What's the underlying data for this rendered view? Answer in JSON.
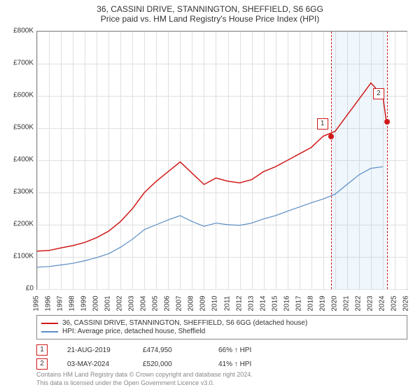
{
  "title": "36, CASSINI DRIVE, STANNINGTON, SHEFFIELD, S6 6GG",
  "subtitle": "Price paid vs. HM Land Registry's House Price Index (HPI)",
  "chart": {
    "type": "line",
    "background_color": "#ffffff",
    "grid_color": "#e0e0e0",
    "border_color": "#888888",
    "xlim": [
      1995,
      2026
    ],
    "ylim": [
      0,
      800000
    ],
    "ytick_step": 100000,
    "ytick_labels": [
      "£0",
      "£100K",
      "£200K",
      "£300K",
      "£400K",
      "£500K",
      "£600K",
      "£700K",
      "£800K"
    ],
    "xtick_step": 1,
    "xtick_labels": [
      "1995",
      "1996",
      "1997",
      "1998",
      "1999",
      "2000",
      "2001",
      "2002",
      "2003",
      "2004",
      "2005",
      "2006",
      "2007",
      "2008",
      "2009",
      "2010",
      "2011",
      "2012",
      "2013",
      "2014",
      "2015",
      "2016",
      "2017",
      "2018",
      "2019",
      "2020",
      "2021",
      "2022",
      "2023",
      "2024",
      "2025",
      "2026"
    ],
    "label_fontsize": 10,
    "title_fontsize": 12,
    "series": [
      {
        "name": "36, CASSINI DRIVE, STANNINGTON, SHEFFIELD, S6 6GG (detached house)",
        "color": "#d11a1a",
        "line_width": 1.5,
        "data": [
          [
            1995,
            118000
          ],
          [
            1996,
            120000
          ],
          [
            1997,
            128000
          ],
          [
            1998,
            135000
          ],
          [
            1999,
            145000
          ],
          [
            2000,
            160000
          ],
          [
            2001,
            180000
          ],
          [
            2002,
            210000
          ],
          [
            2003,
            250000
          ],
          [
            2004,
            300000
          ],
          [
            2005,
            335000
          ],
          [
            2006,
            365000
          ],
          [
            2007,
            395000
          ],
          [
            2008,
            360000
          ],
          [
            2009,
            325000
          ],
          [
            2010,
            345000
          ],
          [
            2011,
            335000
          ],
          [
            2012,
            330000
          ],
          [
            2013,
            340000
          ],
          [
            2014,
            365000
          ],
          [
            2015,
            380000
          ],
          [
            2016,
            400000
          ],
          [
            2017,
            420000
          ],
          [
            2018,
            440000
          ],
          [
            2019,
            475000
          ],
          [
            2020,
            490000
          ],
          [
            2021,
            540000
          ],
          [
            2022,
            590000
          ],
          [
            2023,
            640000
          ],
          [
            2024,
            600000
          ],
          [
            2024.3,
            520000
          ]
        ]
      },
      {
        "name": "HPI: Average price, detached house, Sheffield",
        "color": "#5a8cc4",
        "line_width": 1.2,
        "data": [
          [
            1995,
            68000
          ],
          [
            1996,
            70000
          ],
          [
            1997,
            75000
          ],
          [
            1998,
            80000
          ],
          [
            1999,
            88000
          ],
          [
            2000,
            98000
          ],
          [
            2001,
            110000
          ],
          [
            2002,
            130000
          ],
          [
            2003,
            155000
          ],
          [
            2004,
            185000
          ],
          [
            2005,
            200000
          ],
          [
            2006,
            215000
          ],
          [
            2007,
            228000
          ],
          [
            2008,
            210000
          ],
          [
            2009,
            195000
          ],
          [
            2010,
            205000
          ],
          [
            2011,
            200000
          ],
          [
            2012,
            198000
          ],
          [
            2013,
            205000
          ],
          [
            2014,
            218000
          ],
          [
            2015,
            228000
          ],
          [
            2016,
            242000
          ],
          [
            2017,
            255000
          ],
          [
            2018,
            268000
          ],
          [
            2019,
            280000
          ],
          [
            2020,
            295000
          ],
          [
            2021,
            325000
          ],
          [
            2022,
            355000
          ],
          [
            2023,
            375000
          ],
          [
            2024,
            380000
          ]
        ]
      }
    ],
    "vertical_band": {
      "x_start": 2019.64,
      "x_end": 2024.34,
      "color": "#95c0e8",
      "opacity": 0.15
    },
    "vertical_lines": [
      {
        "x": 2019.64,
        "color": "#d11a1a",
        "style": "dashed"
      },
      {
        "x": 2024.34,
        "color": "#d11a1a",
        "style": "dashed"
      }
    ],
    "markers": [
      {
        "id": "1",
        "x": 2019.64,
        "y_label_pos": 530000,
        "point_y": 474950
      },
      {
        "id": "2",
        "x": 2024.34,
        "y_label_pos": 625000,
        "point_y": 520000
      }
    ]
  },
  "legend": {
    "items": [
      {
        "color": "#d11a1a",
        "label": "36, CASSINI DRIVE, STANNINGTON, SHEFFIELD, S6 6GG (detached house)"
      },
      {
        "color": "#5a8cc4",
        "label": "HPI: Average price, detached house, Sheffield"
      }
    ]
  },
  "data_points": [
    {
      "id": "1",
      "date": "21-AUG-2019",
      "price": "£474,950",
      "pct": "66% ↑ HPI"
    },
    {
      "id": "2",
      "date": "03-MAY-2024",
      "price": "£520,000",
      "pct": "41% ↑ HPI"
    }
  ],
  "footer": {
    "line1": "Contains HM Land Registry data © Crown copyright and database right 2024.",
    "line2": "This data is licensed under the Open Government Licence v3.0."
  }
}
